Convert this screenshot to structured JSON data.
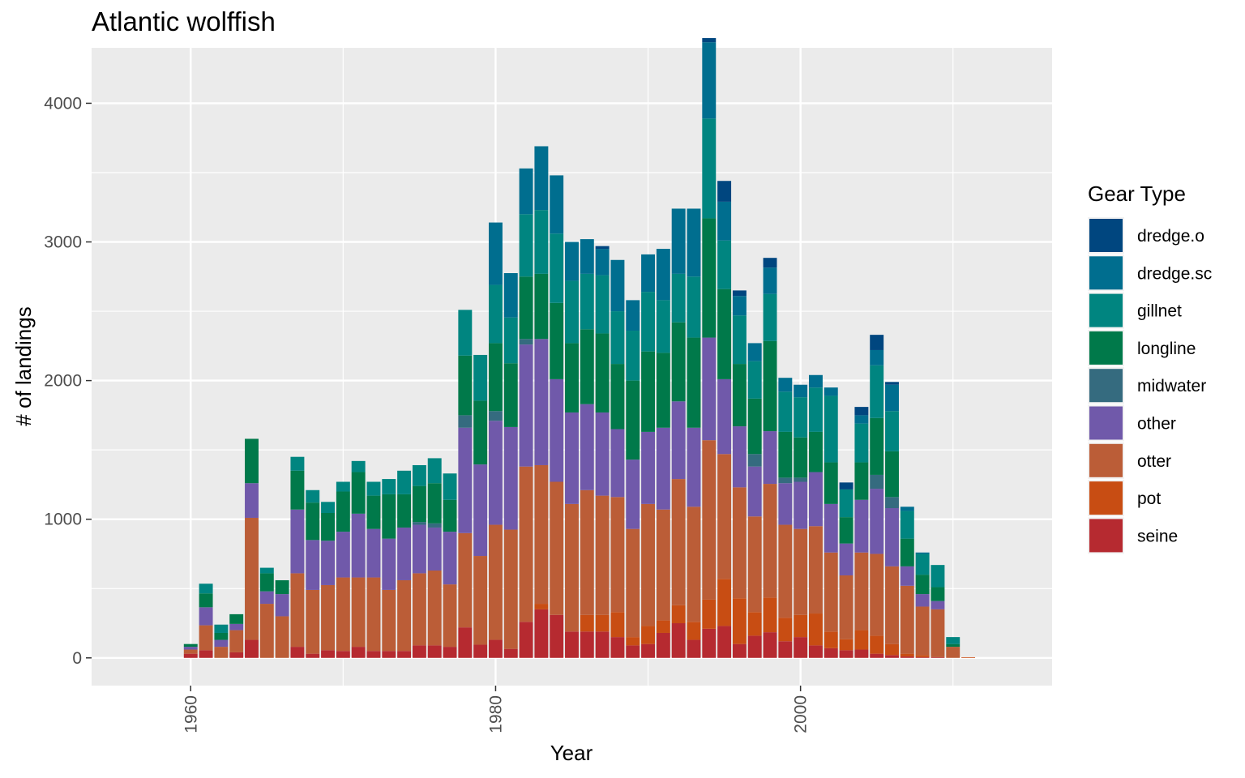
{
  "chart_data": {
    "type": "bar",
    "stacked": true,
    "title": "Atlantic wolffish",
    "xlabel": "Year",
    "ylabel": "# of landings",
    "xlim": [
      1953.5,
      2016.5
    ],
    "ylim": [
      -200,
      4400
    ],
    "x_ticks": [
      1960,
      1980,
      2000
    ],
    "y_ticks": [
      0,
      1000,
      2000,
      3000,
      4000
    ],
    "grid": true,
    "legend": {
      "title": "Gear Type",
      "position": "right"
    },
    "colors": {
      "dredge.o": "#00467f",
      "dredge.sc": "#006e8f",
      "gillnet": "#008580",
      "longline": "#00794a",
      "midwater": "#356b7f",
      "other": "#7059aa",
      "otter": "#bb5d37",
      "pot": "#c84d13",
      "seine": "#b62a30"
    },
    "stack_order": [
      "seine",
      "pot",
      "otter",
      "other",
      "midwater",
      "longline",
      "gillnet",
      "dredge.sc",
      "dredge.o"
    ],
    "x": [
      1960,
      1961,
      1962,
      1963,
      1964,
      1965,
      1966,
      1967,
      1968,
      1969,
      1970,
      1971,
      1972,
      1973,
      1974,
      1975,
      1976,
      1977,
      1978,
      1979,
      1980,
      1981,
      1982,
      1983,
      1984,
      1985,
      1986,
      1987,
      1988,
      1989,
      1990,
      1991,
      1992,
      1993,
      1994,
      1995,
      1996,
      1997,
      1998,
      1999,
      2000,
      2001,
      2002,
      2003,
      2004,
      2005,
      2006,
      2007,
      2008,
      2009,
      2010,
      2011
    ],
    "series": [
      {
        "name": "seine",
        "values": [
          30,
          55,
          0,
          40,
          130,
          0,
          0,
          80,
          30,
          55,
          50,
          80,
          50,
          50,
          50,
          90,
          90,
          80,
          220,
          95,
          130,
          65,
          260,
          350,
          310,
          190,
          190,
          190,
          150,
          90,
          100,
          180,
          250,
          130,
          210,
          230,
          100,
          160,
          185,
          120,
          150,
          90,
          70,
          55,
          60,
          30,
          20,
          10,
          5,
          5,
          0,
          0
        ]
      },
      {
        "name": "pot",
        "values": [
          0,
          0,
          0,
          0,
          0,
          0,
          0,
          0,
          0,
          0,
          0,
          0,
          0,
          0,
          0,
          0,
          0,
          0,
          0,
          0,
          0,
          0,
          0,
          40,
          0,
          0,
          120,
          120,
          180,
          60,
          130,
          90,
          130,
          130,
          210,
          340,
          330,
          170,
          250,
          170,
          160,
          230,
          120,
          80,
          140,
          130,
          80,
          20,
          15,
          0,
          0,
          5
        ]
      },
      {
        "name": "otter",
        "values": [
          30,
          180,
          80,
          160,
          880,
          390,
          300,
          530,
          460,
          470,
          530,
          500,
          530,
          440,
          510,
          520,
          540,
          450,
          680,
          640,
          830,
          860,
          1120,
          1000,
          960,
          920,
          900,
          860,
          830,
          780,
          880,
          800,
          910,
          830,
          1150,
          900,
          800,
          690,
          820,
          670,
          620,
          630,
          570,
          460,
          560,
          590,
          560,
          490,
          350,
          345,
          80,
          0
        ]
      },
      {
        "name": "other",
        "values": [
          20,
          130,
          50,
          45,
          250,
          90,
          160,
          460,
          360,
          320,
          330,
          460,
          350,
          370,
          380,
          350,
          310,
          380,
          760,
          660,
          750,
          740,
          880,
          910,
          740,
          660,
          620,
          600,
          490,
          500,
          520,
          590,
          560,
          570,
          740,
          540,
          440,
          360,
          380,
          300,
          340,
          390,
          350,
          230,
          380,
          470,
          420,
          140,
          90,
          60,
          0,
          0
        ]
      },
      {
        "name": "midwater",
        "values": [
          0,
          0,
          0,
          0,
          0,
          0,
          0,
          0,
          0,
          0,
          0,
          0,
          0,
          0,
          0,
          20,
          30,
          0,
          90,
          0,
          70,
          0,
          40,
          0,
          0,
          0,
          0,
          0,
          0,
          0,
          0,
          0,
          0,
          0,
          0,
          0,
          0,
          90,
          0,
          40,
          30,
          0,
          0,
          0,
          0,
          100,
          80,
          0,
          0,
          0,
          0,
          0
        ]
      },
      {
        "name": "longline",
        "values": [
          20,
          100,
          50,
          70,
          320,
          130,
          100,
          280,
          270,
          200,
          290,
          300,
          240,
          320,
          240,
          260,
          290,
          230,
          430,
          460,
          490,
          460,
          450,
          470,
          550,
          500,
          540,
          570,
          470,
          570,
          580,
          540,
          570,
          650,
          860,
          650,
          450,
          400,
          650,
          330,
          290,
          290,
          300,
          190,
          270,
          410,
          330,
          200,
          140,
          100,
          20,
          0
        ]
      },
      {
        "name": "gillnet",
        "values": [
          0,
          70,
          60,
          0,
          0,
          40,
          0,
          100,
          90,
          80,
          70,
          80,
          100,
          110,
          170,
          150,
          180,
          190,
          330,
          330,
          420,
          330,
          450,
          460,
          500,
          450,
          400,
          420,
          380,
          360,
          430,
          380,
          350,
          440,
          720,
          350,
          350,
          270,
          340,
          290,
          290,
          320,
          480,
          200,
          280,
          380,
          290,
          200,
          150,
          160,
          50,
          0
        ]
      },
      {
        "name": "dredge.sc",
        "values": [
          0,
          0,
          0,
          0,
          0,
          0,
          0,
          0,
          0,
          0,
          0,
          0,
          0,
          0,
          0,
          0,
          0,
          0,
          0,
          0,
          450,
          320,
          330,
          460,
          420,
          280,
          250,
          190,
          370,
          220,
          270,
          370,
          470,
          490,
          550,
          280,
          140,
          130,
          190,
          100,
          90,
          90,
          60,
          0,
          60,
          110,
          190,
          30,
          10,
          0,
          0,
          0
        ]
      },
      {
        "name": "dredge.o",
        "values": [
          0,
          0,
          0,
          0,
          0,
          0,
          0,
          0,
          0,
          0,
          0,
          0,
          0,
          0,
          0,
          0,
          0,
          0,
          0,
          0,
          0,
          0,
          0,
          0,
          0,
          0,
          0,
          20,
          0,
          0,
          0,
          0,
          0,
          0,
          30,
          150,
          40,
          0,
          70,
          0,
          0,
          0,
          0,
          50,
          60,
          110,
          20,
          0,
          0,
          0,
          0,
          0
        ]
      }
    ]
  }
}
